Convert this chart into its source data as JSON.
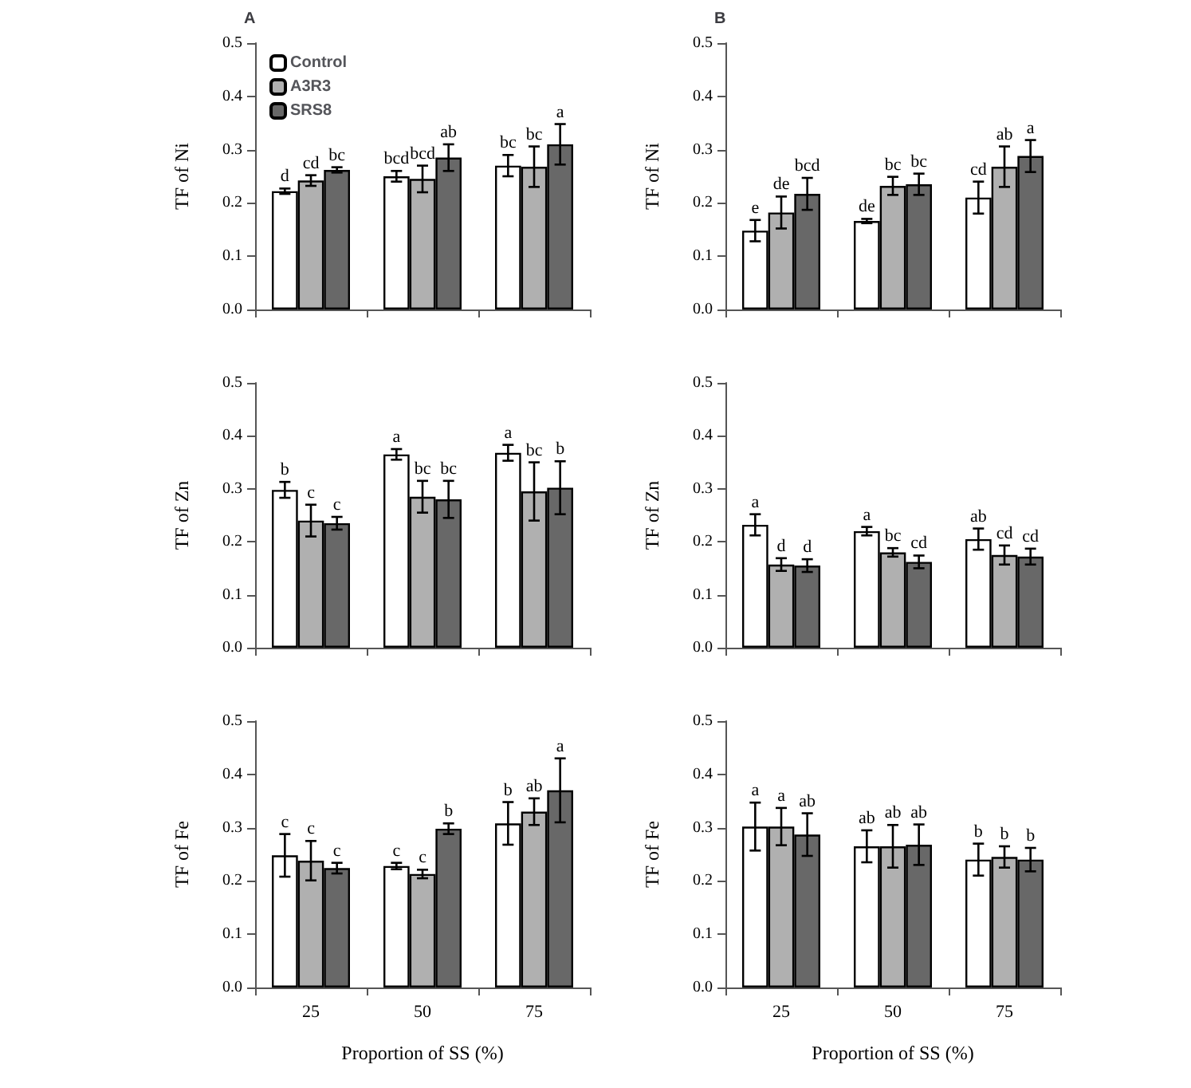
{
  "chart_data": [
    {
      "type": "bar",
      "title": "A",
      "ylabel": "TF of Ni",
      "categories": [
        "25",
        "50",
        "75"
      ],
      "ylim": [
        0,
        0.5
      ],
      "yticks": [
        {
          "value": 0,
          "label": "0.0"
        },
        {
          "value": 0.1,
          "label": "0.1"
        },
        {
          "value": 0.2,
          "label": "0.2"
        },
        {
          "value": 0.3,
          "label": "0.3"
        },
        {
          "value": 0.4,
          "label": "0.4"
        },
        {
          "value": 0.5,
          "label": "0.5"
        }
      ],
      "tick_labels": "y",
      "legend": "top left",
      "grid": false,
      "series": [
        {
          "name": "Control",
          "color": "#ffffff",
          "values": [
            0.222,
            0.25,
            0.27
          ],
          "errors": [
            0.005,
            0.01,
            0.02
          ],
          "value_labels": [
            "d",
            "bcd",
            "bc"
          ]
        },
        {
          "name": "A3R3",
          "color": "#b0b0b0",
          "values": [
            0.242,
            0.245,
            0.268
          ],
          "errors": [
            0.01,
            0.025,
            0.038
          ],
          "value_labels": [
            "cd",
            "bcd",
            "bc"
          ]
        },
        {
          "name": "SRS8",
          "color": "#686868",
          "values": [
            0.262,
            0.285,
            0.31
          ],
          "errors": [
            0.005,
            0.025,
            0.038
          ],
          "value_labels": [
            "bc",
            "ab",
            "a"
          ]
        }
      ]
    },
    {
      "type": "bar",
      "title": "B",
      "ylabel": "TF of Ni",
      "categories": [
        "25",
        "50",
        "75"
      ],
      "ylim": [
        0,
        0.5
      ],
      "yticks": [
        {
          "value": 0,
          "label": "0.0"
        },
        {
          "value": 0.1,
          "label": "0.1"
        },
        {
          "value": 0.2,
          "label": "0.2"
        },
        {
          "value": 0.3,
          "label": "0.3"
        },
        {
          "value": 0.4,
          "label": "0.4"
        },
        {
          "value": 0.5,
          "label": "0.5"
        }
      ],
      "tick_labels": "y",
      "grid": false,
      "series": [
        {
          "color": "#ffffff",
          "values": [
            0.148,
            0.166,
            0.21
          ],
          "errors": [
            0.02,
            0.004,
            0.03
          ],
          "value_labels": [
            "e",
            "de",
            "cd"
          ]
        },
        {
          "color": "#b0b0b0",
          "values": [
            0.182,
            0.232,
            0.268
          ],
          "errors": [
            0.03,
            0.017,
            0.038
          ],
          "value_labels": [
            "de",
            "bc",
            "ab"
          ]
        },
        {
          "color": "#686868",
          "values": [
            0.217,
            0.235,
            0.288
          ],
          "errors": [
            0.03,
            0.02,
            0.03
          ],
          "value_labels": [
            "bcd",
            "bc",
            "a"
          ]
        }
      ]
    },
    {
      "type": "bar",
      "ylabel": "TF of Zn",
      "categories": [
        "25",
        "50",
        "75"
      ],
      "ylim": [
        0,
        0.5
      ],
      "yticks": [
        {
          "value": 0,
          "label": "0.0"
        },
        {
          "value": 0.1,
          "label": "0.1"
        },
        {
          "value": 0.2,
          "label": "0.2"
        },
        {
          "value": 0.3,
          "label": "0.3"
        },
        {
          "value": 0.4,
          "label": "0.4"
        },
        {
          "value": 0.5,
          "label": "0.5"
        }
      ],
      "tick_labels": "y",
      "grid": false,
      "series": [
        {
          "color": "#ffffff",
          "values": [
            0.298,
            0.365,
            0.368
          ],
          "errors": [
            0.015,
            0.01,
            0.015
          ],
          "value_labels": [
            "b",
            "a",
            "a"
          ]
        },
        {
          "color": "#b0b0b0",
          "values": [
            0.24,
            0.285,
            0.295
          ],
          "errors": [
            0.03,
            0.03,
            0.055
          ],
          "value_labels": [
            "c",
            "bc",
            "bc"
          ]
        },
        {
          "color": "#686868",
          "values": [
            0.235,
            0.28,
            0.302
          ],
          "errors": [
            0.012,
            0.035,
            0.05
          ],
          "value_labels": [
            "c",
            "bc",
            "b"
          ]
        }
      ]
    },
    {
      "type": "bar",
      "ylabel": "TF of Zn",
      "categories": [
        "25",
        "50",
        "75"
      ],
      "ylim": [
        0,
        0.5
      ],
      "yticks": [
        {
          "value": 0,
          "label": "0.0"
        },
        {
          "value": 0.1,
          "label": "0.1"
        },
        {
          "value": 0.2,
          "label": "0.2"
        },
        {
          "value": 0.3,
          "label": "0.3"
        },
        {
          "value": 0.4,
          "label": "0.4"
        },
        {
          "value": 0.5,
          "label": "0.5"
        }
      ],
      "tick_labels": "y",
      "grid": false,
      "series": [
        {
          "color": "#ffffff",
          "values": [
            0.232,
            0.22,
            0.205
          ],
          "errors": [
            0.02,
            0.008,
            0.02
          ],
          "value_labels": [
            "a",
            "a",
            "ab"
          ]
        },
        {
          "color": "#b0b0b0",
          "values": [
            0.157,
            0.18,
            0.175
          ],
          "errors": [
            0.012,
            0.008,
            0.018
          ],
          "value_labels": [
            "d",
            "bc",
            "cd"
          ]
        },
        {
          "color": "#686868",
          "values": [
            0.155,
            0.162,
            0.172
          ],
          "errors": [
            0.012,
            0.012,
            0.015
          ],
          "value_labels": [
            "d",
            "cd",
            "cd"
          ]
        }
      ]
    },
    {
      "type": "bar",
      "ylabel": "TF of Fe",
      "xlabel": "Proportion of SS (%)",
      "categories": [
        "25",
        "50",
        "75"
      ],
      "ylim": [
        0,
        0.5
      ],
      "yticks": [
        {
          "value": 0,
          "label": "0.0"
        },
        {
          "value": 0.1,
          "label": "0.1"
        },
        {
          "value": 0.2,
          "label": "0.2"
        },
        {
          "value": 0.3,
          "label": "0.3"
        },
        {
          "value": 0.4,
          "label": "0.4"
        },
        {
          "value": 0.5,
          "label": "0.5"
        }
      ],
      "grid": false,
      "series": [
        {
          "color": "#ffffff",
          "values": [
            0.248,
            0.228,
            0.308
          ],
          "errors": [
            0.04,
            0.006,
            0.04
          ],
          "value_labels": [
            "c",
            "c",
            "b"
          ]
        },
        {
          "color": "#b0b0b0",
          "values": [
            0.238,
            0.213,
            0.33
          ],
          "errors": [
            0.037,
            0.008,
            0.025
          ],
          "value_labels": [
            "c",
            "c",
            "ab"
          ]
        },
        {
          "color": "#686868",
          "values": [
            0.224,
            0.298,
            0.37
          ],
          "errors": [
            0.01,
            0.01,
            0.06
          ],
          "value_labels": [
            "c",
            "b",
            "a"
          ]
        }
      ]
    },
    {
      "type": "bar",
      "ylabel": "TF of Fe",
      "xlabel": "Proportion of SS (%)",
      "categories": [
        "25",
        "50",
        "75"
      ],
      "ylim": [
        0,
        0.5
      ],
      "yticks": [
        {
          "value": 0,
          "label": "0.0"
        },
        {
          "value": 0.1,
          "label": "0.1"
        },
        {
          "value": 0.2,
          "label": "0.2"
        },
        {
          "value": 0.3,
          "label": "0.3"
        },
        {
          "value": 0.4,
          "label": "0.4"
        },
        {
          "value": 0.5,
          "label": "0.5"
        }
      ],
      "grid": false,
      "series": [
        {
          "color": "#ffffff",
          "values": [
            0.302,
            0.265,
            0.24
          ],
          "errors": [
            0.045,
            0.03,
            0.03
          ],
          "value_labels": [
            "a",
            "ab",
            "b"
          ]
        },
        {
          "color": "#b0b0b0",
          "values": [
            0.302,
            0.265,
            0.245
          ],
          "errors": [
            0.035,
            0.04,
            0.02
          ],
          "value_labels": [
            "a",
            "ab",
            "b"
          ]
        },
        {
          "color": "#686868",
          "values": [
            0.287,
            0.268,
            0.24
          ],
          "errors": [
            0.04,
            0.038,
            0.022
          ],
          "value_labels": [
            "ab",
            "ab",
            "b"
          ]
        }
      ]
    }
  ]
}
